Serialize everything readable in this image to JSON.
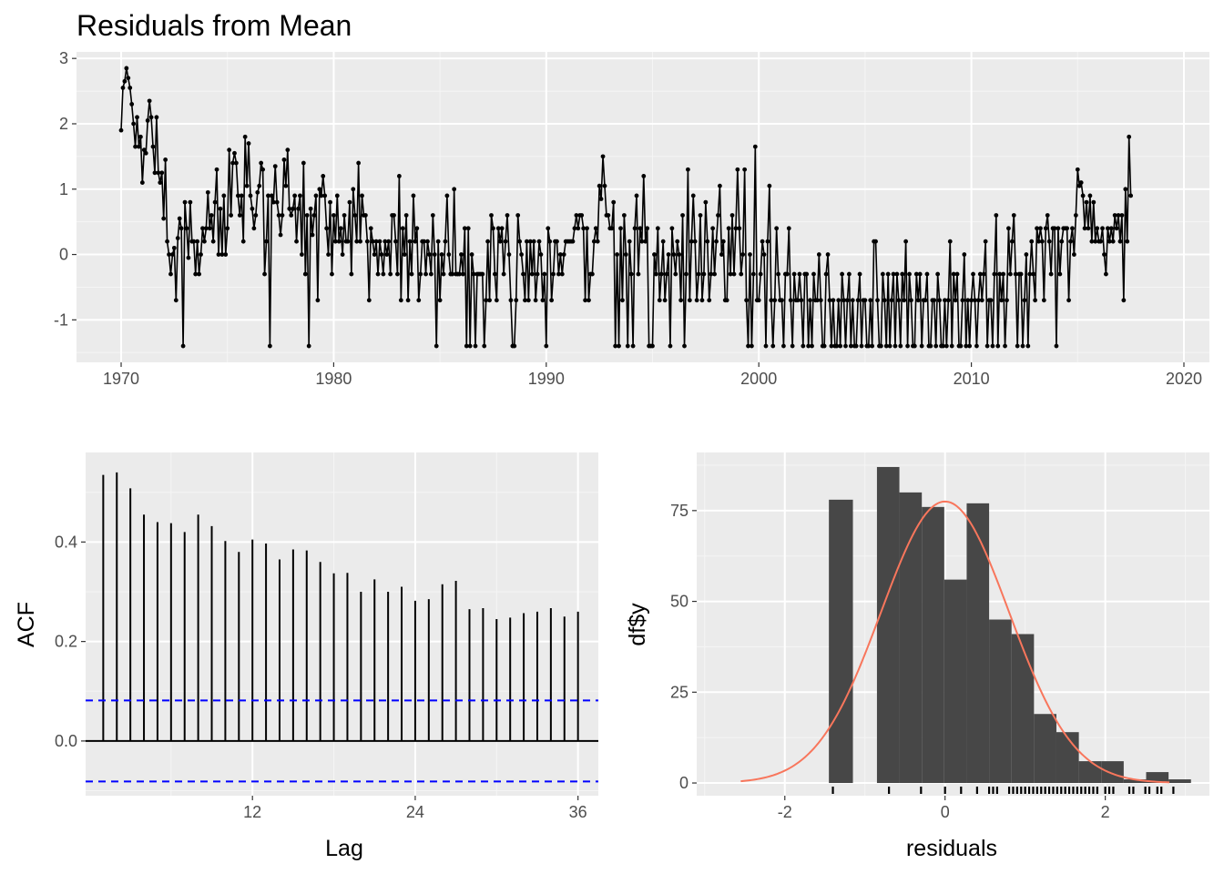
{
  "chart_data": [
    {
      "id": "timeseries",
      "type": "line",
      "title": "Residuals from Mean",
      "xlabel": "",
      "ylabel": "",
      "xlim": [
        1967.9,
        2021.2
      ],
      "ylim": [
        -1.65,
        3.1
      ],
      "x_ticks": [
        1970,
        1980,
        1990,
        2000,
        2010,
        2020
      ],
      "y_ticks": [
        -1,
        0,
        1,
        2,
        3
      ],
      "grid": true,
      "line_color": "#000000",
      "x_start": 1970,
      "x_step": 0.0833333,
      "values": [
        1.9,
        2.55,
        2.65,
        2.85,
        2.7,
        2.55,
        2.3,
        2.0,
        1.65,
        2.1,
        1.65,
        1.8,
        1.1,
        1.6,
        1.55,
        2.05,
        2.35,
        2.1,
        1.65,
        1.25,
        2.1,
        1.25,
        1.1,
        1.25,
        0.55,
        1.45,
        0.2,
        0.0,
        -0.3,
        0.0,
        0.1,
        -0.7,
        0.25,
        0.55,
        0.4,
        -1.4,
        0.8,
        0.4,
        -0.05,
        0.8,
        0.2,
        0.2,
        -0.3,
        0.2,
        -0.3,
        0.0,
        0.4,
        0.2,
        0.4,
        0.95,
        0.4,
        0.6,
        0.2,
        0.8,
        1.3,
        0.0,
        0.7,
        0.0,
        0.9,
        0.0,
        0.4,
        1.6,
        0.6,
        1.4,
        1.55,
        1.4,
        0.9,
        0.6,
        0.9,
        0.2,
        1.8,
        1.05,
        1.7,
        0.9,
        0.7,
        0.4,
        0.6,
        0.95,
        1.05,
        1.4,
        1.3,
        -0.3,
        0.2,
        0.9,
        -1.4,
        0.9,
        0.8,
        1.35,
        0.8,
        0.6,
        0.3,
        0.6,
        1.45,
        1.05,
        1.6,
        0.7,
        0.6,
        0.7,
        0.9,
        0.2,
        0.7,
        0.9,
        0.0,
        1.4,
        -0.3,
        0.6,
        -1.4,
        0.7,
        0.3,
        0.6,
        0.9,
        -0.7,
        1.0,
        0.9,
        1.2,
        0.9,
        0.4,
        0.0,
        0.8,
        -0.3,
        0.6,
        0.2,
        0.9,
        0.2,
        0.4,
        0.0,
        0.6,
        0.2,
        0.2,
        0.8,
        -0.3,
        1.0,
        0.6,
        0.2,
        1.4,
        0.2,
        0.9,
        0.6,
        0.6,
        0.2,
        -0.7,
        0.4,
        0.2,
        0.0,
        0.2,
        -0.3,
        0.2,
        0.0,
        -0.3,
        0.2,
        0.0,
        0.2,
        -0.3,
        0.6,
        0.6,
        0.2,
        -0.3,
        1.2,
        -0.7,
        0.4,
        0.0,
        0.6,
        -0.7,
        0.2,
        -0.3,
        0.9,
        0.2,
        0.4,
        -0.7,
        -0.3,
        0.2,
        0.2,
        -0.3,
        0.2,
        0.0,
        -0.3,
        0.6,
        0.0,
        -1.4,
        0.2,
        -0.7,
        0.0,
        -0.3,
        0.2,
        0.9,
        0.0,
        -0.3,
        -0.3,
        1.0,
        -0.3,
        -0.3,
        -0.3,
        0.0,
        -0.3,
        0.4,
        -1.4,
        0.4,
        -1.4,
        0.0,
        -0.3,
        -1.4,
        -0.3,
        -0.3,
        -0.3,
        -0.3,
        -1.4,
        -0.7,
        0.2,
        -0.7,
        0.6,
        0.4,
        -0.3,
        -0.7,
        0.4,
        0.2,
        0.4,
        -0.3,
        0.2,
        0.6,
        0.0,
        -0.7,
        -1.4,
        -1.4,
        -0.7,
        0.6,
        0.2,
        0.0,
        -0.3,
        -0.7,
        0.2,
        -0.7,
        0.2,
        -0.3,
        0.2,
        -0.7,
        -0.3,
        0.2,
        0.0,
        -0.7,
        -0.3,
        -1.4,
        0.4,
        0.2,
        -0.7,
        -0.3,
        0.2,
        0.2,
        -0.3,
        0.0,
        -0.3,
        0.0,
        0.2,
        0.2,
        0.2,
        0.2,
        0.2,
        0.4,
        0.6,
        0.4,
        0.6,
        0.6,
        0.4,
        -0.7,
        0.4,
        -0.7,
        -0.3,
        -0.3,
        0.2,
        0.4,
        0.2,
        1.05,
        0.85,
        1.5,
        1.05,
        0.6,
        0.6,
        0.4,
        0.4,
        0.8,
        -1.4,
        0.0,
        -1.4,
        0.4,
        -0.7,
        0.6,
        0.0,
        -1.4,
        0.2,
        -0.3,
        -1.4,
        0.4,
        0.9,
        -0.3,
        0.4,
        0.2,
        1.2,
        0.2,
        0.4,
        -1.4,
        -1.4,
        -1.4,
        0.0,
        -0.3,
        0.4,
        -0.7,
        -0.3,
        0.2,
        -0.7,
        -0.3,
        0.0,
        -1.4,
        0.4,
        0.0,
        -0.3,
        0.2,
        0.0,
        -0.7,
        0.6,
        -1.4,
        -0.3,
        1.3,
        -0.7,
        0.2,
        0.9,
        0.2,
        -0.7,
        -0.3,
        0.6,
        -0.7,
        -0.3,
        0.8,
        0.2,
        -0.7,
        -0.3,
        0.4,
        -0.3,
        0.2,
        0.6,
        1.05,
        0.0,
        0.2,
        -0.7,
        -0.7,
        0.4,
        -0.3,
        0.6,
        -0.3,
        0.4,
        1.3,
        0.4,
        -0.3,
        0.0,
        1.3,
        -0.7,
        -1.4,
        0.0,
        -1.4,
        -0.3,
        1.65,
        -0.7,
        -0.7,
        -0.3,
        0.2,
        0.0,
        -1.4,
        0.2,
        1.05,
        -0.7,
        -1.4,
        -0.7,
        0.4,
        -0.3,
        -0.7,
        -0.7,
        -1.4,
        -0.3,
        -0.3,
        0.4,
        -0.7,
        -1.4,
        -0.3,
        -0.7,
        -0.7,
        -0.3,
        -0.7,
        -1.4,
        -0.3,
        -0.3,
        -1.4,
        -0.7,
        -1.4,
        -0.3,
        -0.7,
        -0.7,
        0.0,
        -0.7,
        -1.4,
        -1.4,
        -0.3,
        0.0,
        -0.7,
        -1.4,
        -0.7,
        -1.4,
        -1.4,
        -0.7,
        -1.4,
        -0.3,
        -0.7,
        -1.4,
        -0.7,
        -0.3,
        -1.4,
        -0.7,
        -1.4,
        -1.4,
        -0.7,
        -0.3,
        -1.4,
        -0.7,
        -0.7,
        -1.4,
        -1.4,
        -0.7,
        -1.4,
        0.2,
        0.2,
        -0.7,
        -1.4,
        -1.4,
        -0.3,
        -0.7,
        -1.4,
        -0.3,
        -1.4,
        -0.7,
        -0.3,
        -1.4,
        -0.3,
        -0.7,
        -1.4,
        -0.3,
        -0.7,
        0.2,
        -1.4,
        -0.3,
        -0.7,
        -1.4,
        -1.4,
        -0.3,
        -0.7,
        -0.3,
        -1.4,
        -0.7,
        -0.7,
        -0.3,
        -1.4,
        -1.4,
        -0.7,
        -0.7,
        -1.4,
        -0.3,
        -0.7,
        -1.4,
        -1.4,
        -0.7,
        -1.4,
        -0.7,
        0.2,
        -1.4,
        -0.3,
        -0.7,
        -0.3,
        -1.4,
        -1.4,
        -0.7,
        0.0,
        -1.4,
        -0.7,
        -1.4,
        -0.7,
        -0.3,
        -0.7,
        -1.4,
        -0.7,
        -0.3,
        -0.7,
        -0.3,
        0.2,
        -1.4,
        -0.7,
        -0.7,
        -1.4,
        -0.3,
        0.6,
        -1.4,
        -0.3,
        -0.7,
        -0.3,
        -1.4,
        -0.7,
        0.4,
        -0.3,
        0.2,
        0.6,
        -0.3,
        -1.4,
        -0.3,
        -0.3,
        -1.4,
        -0.7,
        0.0,
        -1.4,
        -0.3,
        0.2,
        -0.3,
        -0.7,
        0.4,
        0.2,
        0.4,
        0.2,
        -0.7,
        0.4,
        0.6,
        0.2,
        -0.3,
        0.4,
        0.4,
        -1.4,
        0.4,
        -0.3,
        0.2,
        0.4,
        0.4,
        0.4,
        -0.7,
        0.2,
        0.4,
        0.0,
        0.6,
        1.3,
        1.05,
        1.1,
        0.9,
        0.4,
        0.8,
        0.4,
        0.9,
        0.2,
        0.8,
        0.2,
        0.4,
        0.2,
        0.2,
        0.4,
        0.0,
        -0.3,
        0.4,
        0.2,
        0.4,
        0.2,
        0.6,
        0.4,
        0.6,
        0.2,
        0.6,
        -0.7,
        1.0,
        0.2,
        1.8,
        0.9
      ]
    },
    {
      "id": "acf",
      "type": "bar",
      "title": "",
      "xlabel": "Lag",
      "ylabel": "ACF",
      "xlim": [
        -0.3,
        37.5
      ],
      "ylim": [
        -0.11,
        0.58
      ],
      "x_ticks": [
        12,
        24,
        36
      ],
      "y_ticks": [
        0.0,
        0.2,
        0.4
      ],
      "grid": true,
      "lags": [
        1,
        2,
        3,
        4,
        5,
        6,
        7,
        8,
        9,
        10,
        11,
        12,
        13,
        14,
        15,
        16,
        17,
        18,
        19,
        20,
        21,
        22,
        23,
        24,
        25,
        26,
        27,
        28,
        29,
        30,
        31,
        32,
        33,
        34,
        35,
        36
      ],
      "values": [
        0.535,
        0.54,
        0.508,
        0.455,
        0.44,
        0.438,
        0.42,
        0.455,
        0.432,
        0.402,
        0.38,
        0.405,
        0.397,
        0.365,
        0.385,
        0.383,
        0.36,
        0.337,
        0.338,
        0.3,
        0.325,
        0.3,
        0.31,
        0.282,
        0.285,
        0.315,
        0.322,
        0.265,
        0.267,
        0.245,
        0.248,
        0.257,
        0.26,
        0.267,
        0.25,
        0.26
      ],
      "ci_bounds": [
        0.0815,
        -0.0815
      ],
      "ci_color": "#0000ff"
    },
    {
      "id": "histogram",
      "type": "bar",
      "title": "",
      "xlabel": "residuals",
      "ylabel": "df$y",
      "xlim": [
        -3.1,
        3.3
      ],
      "ylim": [
        -3.5,
        91
      ],
      "x_ticks": [
        -2,
        0,
        2
      ],
      "y_ticks": [
        0,
        25,
        50,
        75
      ],
      "grid": true,
      "bar_color": "#474747",
      "bins": [
        {
          "x0": -1.45,
          "x1": -1.15,
          "count": 78
        },
        {
          "x0": -1.15,
          "x1": -0.85,
          "count": 0
        },
        {
          "x0": -0.85,
          "x1": -0.57,
          "count": 87
        },
        {
          "x0": -0.57,
          "x1": -0.29,
          "count": 80
        },
        {
          "x0": -0.29,
          "x1": -0.01,
          "count": 76
        },
        {
          "x0": -0.01,
          "x1": 0.27,
          "count": 56
        },
        {
          "x0": 0.27,
          "x1": 0.55,
          "count": 77
        },
        {
          "x0": 0.55,
          "x1": 0.83,
          "count": 45
        },
        {
          "x0": 0.83,
          "x1": 1.11,
          "count": 41
        },
        {
          "x0": 1.11,
          "x1": 1.39,
          "count": 19
        },
        {
          "x0": 1.39,
          "x1": 1.67,
          "count": 14
        },
        {
          "x0": 1.67,
          "x1": 1.95,
          "count": 6
        },
        {
          "x0": 1.95,
          "x1": 2.23,
          "count": 6
        },
        {
          "x0": 2.23,
          "x1": 2.51,
          "count": 1
        },
        {
          "x0": 2.51,
          "x1": 2.79,
          "count": 3
        },
        {
          "x0": 2.79,
          "x1": 3.07,
          "count": 1
        }
      ],
      "density_curve": {
        "mean": 0.0,
        "sd": 0.8,
        "peak": 77.5,
        "x_min": -2.55,
        "x_max": 2.8,
        "color": "#f8765c"
      },
      "rug": [
        -1.4,
        -0.7,
        -0.3,
        0.0,
        0.2,
        0.4,
        0.55,
        0.6,
        0.65,
        0.8,
        0.85,
        0.9,
        0.95,
        1.0,
        1.05,
        1.1,
        1.15,
        1.2,
        1.25,
        1.3,
        1.35,
        1.4,
        1.45,
        1.5,
        1.55,
        1.6,
        1.65,
        1.7,
        1.75,
        1.8,
        1.85,
        1.9,
        2.0,
        2.05,
        2.1,
        2.3,
        2.35,
        2.5,
        2.55,
        2.65,
        2.7,
        2.85
      ]
    }
  ]
}
